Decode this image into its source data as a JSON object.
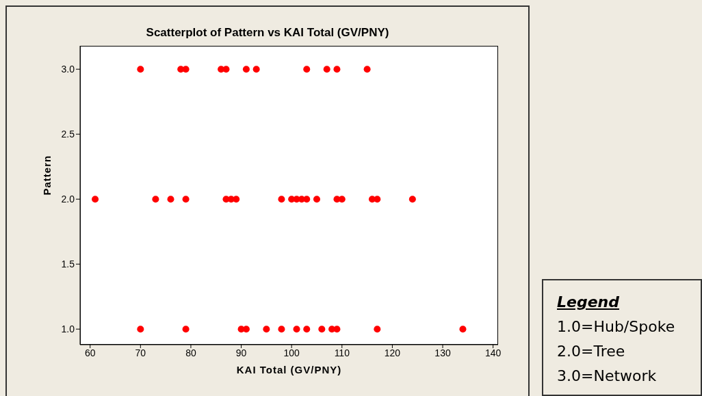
{
  "chart_data": {
    "type": "scatter",
    "title": "Scatterplot of Pattern vs KAI Total (GV/PNY)",
    "xlabel": "KAI Total (GV/PNY)",
    "ylabel": "Pattern",
    "x": [
      70,
      78,
      79,
      86,
      87,
      91,
      93,
      103,
      107,
      109,
      115,
      61,
      73,
      76,
      79,
      87,
      88,
      89,
      98,
      100,
      101,
      102,
      103,
      105,
      109,
      110,
      116,
      117,
      124,
      70,
      79,
      90,
      91,
      95,
      98,
      101,
      103,
      106,
      108,
      109,
      117,
      134
    ],
    "values": [
      3,
      3,
      3,
      3,
      3,
      3,
      3,
      3,
      3,
      3,
      3,
      2,
      2,
      2,
      2,
      2,
      2,
      2,
      2,
      2,
      2,
      2,
      2,
      2,
      2,
      2,
      2,
      2,
      2,
      1,
      1,
      1,
      1,
      1,
      1,
      1,
      1,
      1,
      1,
      1,
      1,
      1
    ],
    "color": "#ff0000",
    "marker": "circle",
    "xlim": [
      58,
      141
    ],
    "xticks": [
      60,
      70,
      80,
      90,
      100,
      110,
      120,
      130,
      140
    ],
    "ylim": [
      0.88,
      3.18
    ],
    "yticks": [
      {
        "value": 1,
        "label": "1.0"
      },
      {
        "value": 1.5,
        "label": "1.5"
      },
      {
        "value": 2,
        "label": "2.0"
      },
      {
        "value": 2.5,
        "label": "2.5"
      },
      {
        "value": 3,
        "label": "3.0"
      }
    ],
    "grid": false,
    "legend": false,
    "annotations": [
      "Legend",
      "1.0=Hub/Spoke",
      "2.0=Tree",
      "3.0=Network"
    ]
  }
}
